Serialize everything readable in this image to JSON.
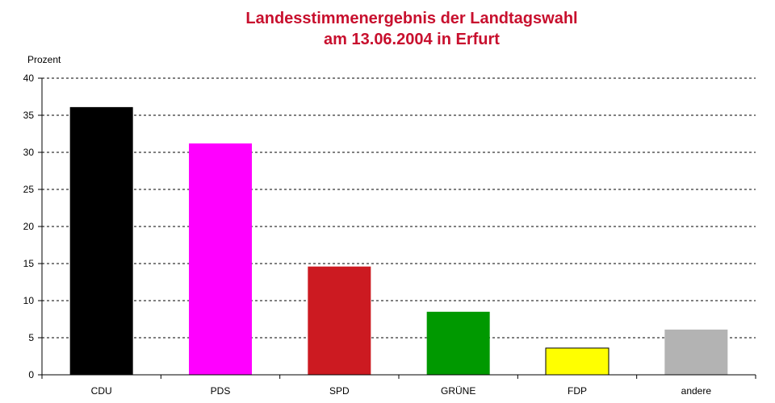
{
  "chart_data": {
    "type": "bar",
    "title": "Landesstimmenergebnis der Landtagswahl",
    "subtitle": "am 13.06.2004  in Erfurt",
    "xlabel": "",
    "ylabel": "Prozent",
    "categories": [
      "CDU",
      "PDS",
      "SPD",
      "GRÜNE",
      "FDP",
      "andere"
    ],
    "values": [
      36.1,
      31.2,
      14.6,
      8.5,
      3.6,
      6.1
    ],
    "colors": [
      "#000000",
      "#ff00ff",
      "#cc1a21",
      "#009900",
      "#ffff00",
      "#b3b3b3"
    ],
    "ylim": [
      0,
      40
    ],
    "yticks": [
      0,
      5,
      10,
      15,
      20,
      25,
      30,
      35,
      40
    ],
    "grid": true,
    "legend": "none"
  }
}
